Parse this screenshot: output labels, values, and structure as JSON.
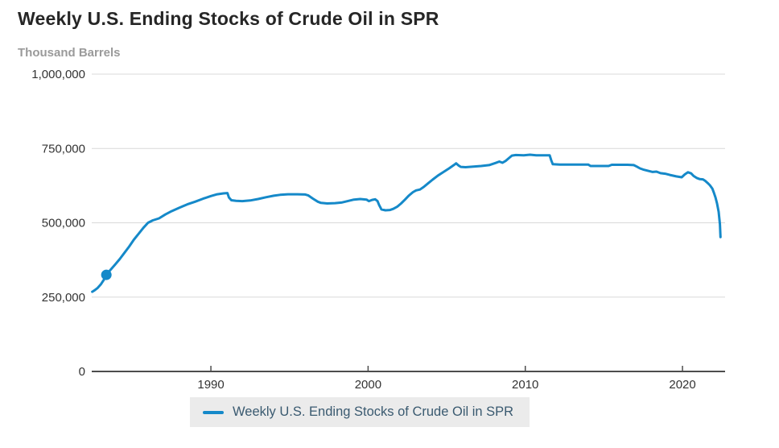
{
  "header": {
    "title": "Weekly U.S. Ending Stocks of Crude Oil in SPR",
    "unit": "Thousand Barrels"
  },
  "legend": {
    "label": "Weekly U.S. Ending Stocks of Crude Oil in SPR",
    "swatch_color": "#1589c9"
  },
  "colors": {
    "line": "#1589c9",
    "marker": "#1589c9",
    "gridline": "#d9d9d9",
    "axis": "#4d4d4d",
    "tick_text": "#333333",
    "legend_bg": "#ebebeb",
    "legend_text": "#3a5a70"
  },
  "chart_data": {
    "type": "line",
    "title": "Weekly U.S. Ending Stocks of Crude Oil in SPR",
    "xlabel": "",
    "ylabel": "Thousand Barrels",
    "grid": true,
    "legend_position": "bottom",
    "x_domain": [
      1982.42,
      2022.71
    ],
    "y_domain": [
      0,
      1000000
    ],
    "x_ticks": [
      {
        "value": 1990,
        "label": "1990"
      },
      {
        "value": 2000,
        "label": "2000"
      },
      {
        "value": 2010,
        "label": "2010"
      },
      {
        "value": 2020,
        "label": "2020"
      }
    ],
    "y_ticks": [
      {
        "value": 0,
        "label": "0"
      },
      {
        "value": 250000,
        "label": "250,000"
      },
      {
        "value": 500000,
        "label": "500,000"
      },
      {
        "value": 750000,
        "label": "750,000"
      },
      {
        "value": 1000000,
        "label": "1,000,000"
      }
    ],
    "highlight_point": {
      "year": 1983.35,
      "value": 325000
    },
    "series": [
      {
        "name": "Weekly U.S. Ending Stocks of Crude Oil in SPR",
        "color": "#1589c9",
        "points": [
          [
            1982.45,
            268000
          ],
          [
            1982.6,
            273000
          ],
          [
            1982.8,
            281000
          ],
          [
            1983.0,
            293000
          ],
          [
            1983.2,
            309000
          ],
          [
            1983.35,
            325000
          ],
          [
            1983.6,
            341000
          ],
          [
            1983.9,
            359000
          ],
          [
            1984.2,
            378000
          ],
          [
            1984.5,
            399000
          ],
          [
            1984.8,
            420000
          ],
          [
            1985.1,
            443000
          ],
          [
            1985.4,
            463000
          ],
          [
            1985.7,
            483000
          ],
          [
            1986.0,
            500000
          ],
          [
            1986.3,
            508000
          ],
          [
            1986.7,
            515000
          ],
          [
            1987.1,
            528000
          ],
          [
            1987.5,
            539000
          ],
          [
            1988.0,
            551000
          ],
          [
            1988.5,
            562000
          ],
          [
            1989.0,
            571000
          ],
          [
            1989.5,
            581000
          ],
          [
            1990.0,
            590000
          ],
          [
            1990.4,
            596000
          ],
          [
            1990.8,
            599000
          ],
          [
            1991.05,
            600000
          ],
          [
            1991.15,
            585000
          ],
          [
            1991.3,
            576000
          ],
          [
            1991.6,
            574000
          ],
          [
            1992.0,
            573000
          ],
          [
            1992.5,
            575000
          ],
          [
            1993.0,
            580000
          ],
          [
            1993.5,
            586000
          ],
          [
            1994.0,
            591000
          ],
          [
            1994.4,
            594000
          ],
          [
            1994.9,
            596000
          ],
          [
            1995.5,
            596000
          ],
          [
            1996.0,
            595000
          ],
          [
            1996.2,
            592000
          ],
          [
            1996.5,
            581000
          ],
          [
            1996.8,
            571000
          ],
          [
            1997.0,
            567000
          ],
          [
            1997.4,
            565000
          ],
          [
            1997.9,
            566000
          ],
          [
            1998.3,
            568000
          ],
          [
            1998.7,
            573000
          ],
          [
            1999.1,
            578000
          ],
          [
            1999.5,
            580000
          ],
          [
            1999.9,
            578000
          ],
          [
            2000.05,
            573000
          ],
          [
            2000.25,
            577000
          ],
          [
            2000.45,
            579000
          ],
          [
            2000.6,
            573000
          ],
          [
            2000.7,
            560000
          ],
          [
            2000.85,
            545000
          ],
          [
            2001.1,
            542000
          ],
          [
            2001.4,
            543000
          ],
          [
            2001.6,
            547000
          ],
          [
            2001.85,
            554000
          ],
          [
            2002.1,
            565000
          ],
          [
            2002.35,
            578000
          ],
          [
            2002.6,
            592000
          ],
          [
            2002.85,
            603000
          ],
          [
            2003.05,
            609000
          ],
          [
            2003.3,
            612000
          ],
          [
            2003.55,
            621000
          ],
          [
            2003.8,
            632000
          ],
          [
            2004.1,
            645000
          ],
          [
            2004.45,
            659000
          ],
          [
            2004.8,
            671000
          ],
          [
            2005.15,
            683000
          ],
          [
            2005.45,
            694000
          ],
          [
            2005.6,
            700000
          ],
          [
            2005.75,
            693000
          ],
          [
            2005.9,
            688000
          ],
          [
            2006.2,
            687000
          ],
          [
            2006.7,
            689000
          ],
          [
            2007.2,
            691000
          ],
          [
            2007.7,
            694000
          ],
          [
            2008.1,
            701000
          ],
          [
            2008.35,
            706000
          ],
          [
            2008.55,
            702000
          ],
          [
            2008.75,
            708000
          ],
          [
            2008.95,
            717000
          ],
          [
            2009.15,
            726000
          ],
          [
            2009.4,
            728000
          ],
          [
            2009.9,
            727000
          ],
          [
            2010.3,
            729000
          ],
          [
            2010.7,
            727000
          ],
          [
            2011.2,
            727000
          ],
          [
            2011.55,
            727000
          ],
          [
            2011.65,
            710000
          ],
          [
            2011.75,
            697000
          ],
          [
            2012.2,
            696000
          ],
          [
            2012.8,
            696000
          ],
          [
            2013.4,
            696000
          ],
          [
            2014.0,
            696000
          ],
          [
            2014.15,
            691000
          ],
          [
            2014.7,
            691000
          ],
          [
            2015.3,
            691000
          ],
          [
            2015.5,
            695000
          ],
          [
            2016.0,
            695000
          ],
          [
            2016.5,
            695000
          ],
          [
            2016.9,
            694000
          ],
          [
            2017.1,
            689000
          ],
          [
            2017.3,
            683000
          ],
          [
            2017.5,
            679000
          ],
          [
            2017.8,
            675000
          ],
          [
            2018.1,
            671000
          ],
          [
            2018.35,
            672000
          ],
          [
            2018.6,
            667000
          ],
          [
            2018.9,
            665000
          ],
          [
            2019.2,
            661000
          ],
          [
            2019.6,
            656000
          ],
          [
            2019.95,
            653000
          ],
          [
            2020.15,
            663000
          ],
          [
            2020.35,
            670000
          ],
          [
            2020.55,
            666000
          ],
          [
            2020.7,
            658000
          ],
          [
            2020.9,
            651000
          ],
          [
            2021.1,
            647000
          ],
          [
            2021.3,
            646000
          ],
          [
            2021.45,
            641000
          ],
          [
            2021.6,
            634000
          ],
          [
            2021.75,
            626000
          ],
          [
            2021.9,
            615000
          ],
          [
            2022.0,
            601000
          ],
          [
            2022.1,
            585000
          ],
          [
            2022.2,
            565000
          ],
          [
            2022.3,
            537000
          ],
          [
            2022.38,
            495000
          ],
          [
            2022.42,
            452000
          ]
        ]
      }
    ]
  }
}
